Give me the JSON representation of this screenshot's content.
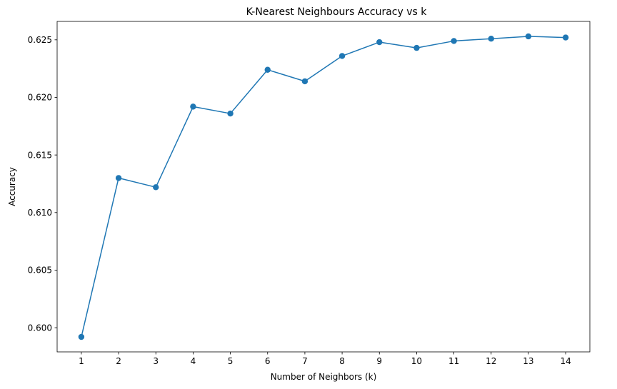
{
  "chart_data": {
    "type": "line",
    "title": "K-Nearest Neighbours Accuracy vs k",
    "xlabel": "Number of Neighbors (k)",
    "ylabel": "Accuracy",
    "x": [
      1,
      2,
      3,
      4,
      5,
      6,
      7,
      8,
      9,
      10,
      11,
      12,
      13,
      14
    ],
    "series": [
      {
        "values": [
          0.5992,
          0.613,
          0.6122,
          0.6192,
          0.6186,
          0.6224,
          0.6214,
          0.6236,
          0.6248,
          0.6243,
          0.6249,
          0.6251,
          0.6253,
          0.6252
        ],
        "color": "#1f77b4",
        "marker": "circle"
      }
    ],
    "xticks": [
      "1",
      "2",
      "3",
      "4",
      "5",
      "6",
      "7",
      "8",
      "9",
      "10",
      "11",
      "12",
      "13",
      "14"
    ],
    "yticks": [
      0.6,
      0.605,
      0.61,
      0.615,
      0.62,
      0.625
    ],
    "ytick_labels": [
      "0.600",
      "0.605",
      "0.610",
      "0.615",
      "0.620",
      "0.625"
    ],
    "xlim": [
      0.35,
      14.65
    ],
    "ylim": [
      0.5979,
      0.6266
    ],
    "grid": false,
    "legend": false
  }
}
